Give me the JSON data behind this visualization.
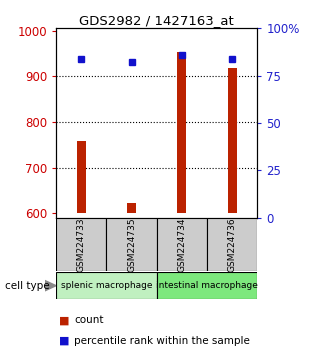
{
  "title": "GDS2982 / 1427163_at",
  "samples": [
    "GSM224733",
    "GSM224735",
    "GSM224734",
    "GSM224736"
  ],
  "counts": [
    758,
    623,
    954,
    918
  ],
  "percentiles": [
    84,
    82,
    86,
    84
  ],
  "ylim_left": [
    590,
    1005
  ],
  "ylim_right": [
    0,
    100
  ],
  "yticks_left": [
    600,
    700,
    800,
    900,
    1000
  ],
  "yticks_right": [
    0,
    25,
    50,
    75,
    100
  ],
  "bar_color": "#bb2200",
  "dot_color": "#1111cc",
  "group1_color": "#c0f0c0",
  "group2_color": "#7de87d",
  "group1_label": "splenic macrophage",
  "group2_label": "intestinal macrophage",
  "cell_type_label": "cell type",
  "legend_count": "count",
  "legend_percentile": "percentile rank within the sample",
  "bar_bottom": 590,
  "bar_width": 0.18,
  "left_label_color": "#cc0000",
  "right_label_color": "#2222cc",
  "sample_box_color": "#cccccc",
  "title_color": "#000000",
  "title_fontsize": 9.5
}
